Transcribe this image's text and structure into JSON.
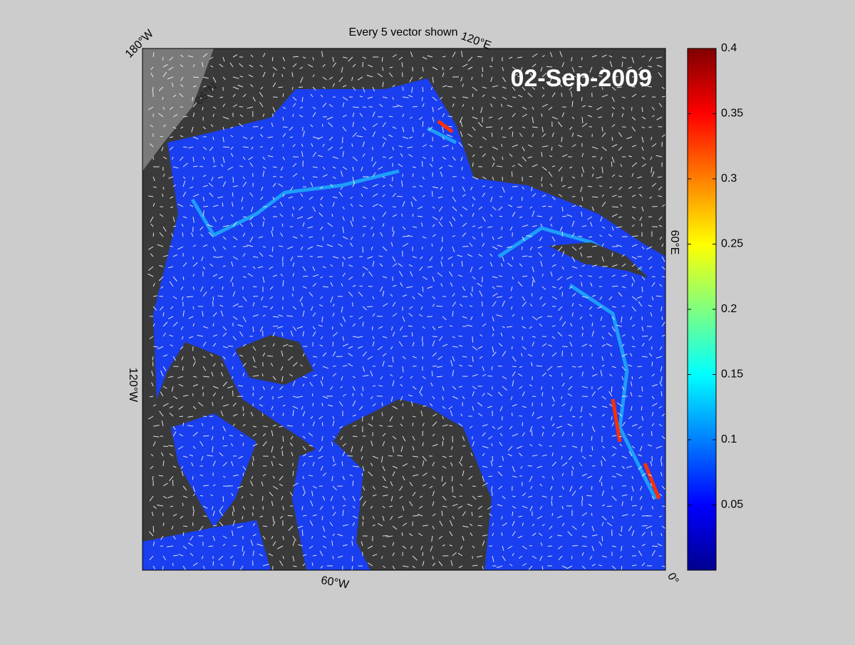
{
  "title": "Every 5 vector shown",
  "date_label": "02-Sep-2009",
  "longitude_labels": [
    "180°W",
    "120°E",
    "60°E",
    "0°",
    "60°W",
    "120°W"
  ],
  "latitude_labels": [
    "86°N"
  ],
  "colorbar": {
    "lim": [
      0,
      0.4
    ],
    "ticks": [
      0.05,
      0.1,
      0.15,
      0.2,
      0.25,
      0.3,
      0.35,
      0.4
    ]
  }
}
